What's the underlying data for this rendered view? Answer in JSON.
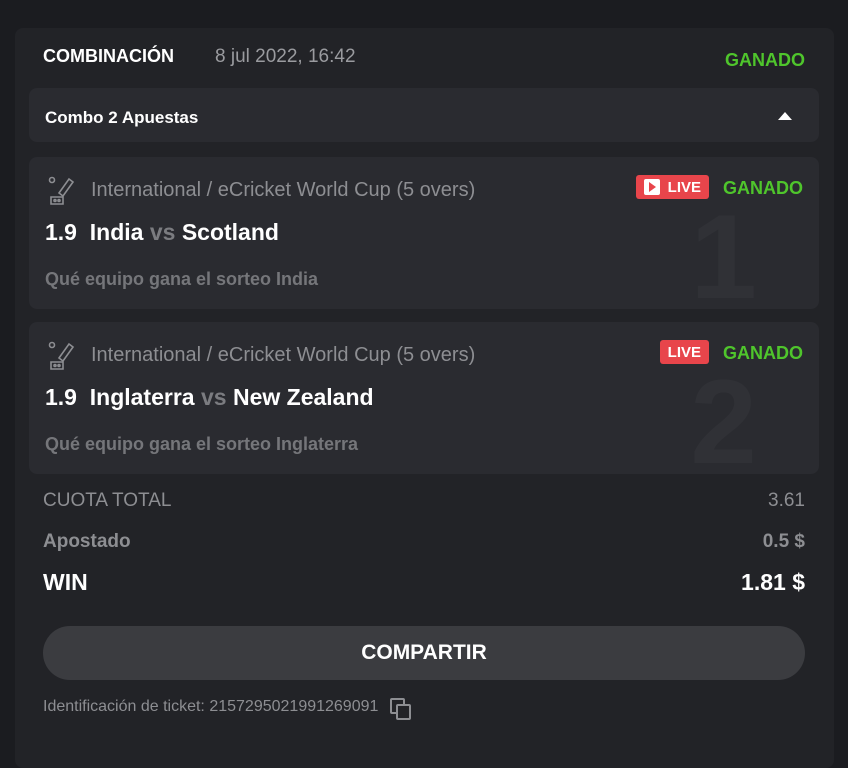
{
  "header": {
    "title": "COMBINACIÓN",
    "date": "8 jul 2022, 16:42",
    "status": "GANADO"
  },
  "combo": {
    "label": "Combo 2 Apuestas"
  },
  "bets": [
    {
      "league": "International / eCricket World Cup (5 overs)",
      "live": "LIVE",
      "status": "GANADO",
      "odds": "1.9",
      "home": "India",
      "vs": "vs",
      "away": "Scotland",
      "market": "Qué equipo gana el sorteo India",
      "index": "1"
    },
    {
      "league": "International / eCricket World Cup (5 overs)",
      "live": "LIVE",
      "status": "GANADO",
      "odds": "1.9",
      "home": "Inglaterra",
      "vs": "vs",
      "away": "New Zealand",
      "market": "Qué equipo gana el sorteo Inglaterra",
      "index": "2"
    }
  ],
  "summary": {
    "total_odds_label": "CUOTA TOTAL",
    "total_odds": "3.61",
    "stake_label": "Apostado",
    "stake": "0.5 $",
    "win_label": "WIN",
    "win": "1.81 $"
  },
  "share_label": "COMPARTIR",
  "ticket": {
    "label": "Identificación de ticket:",
    "id": "2157295021991269091"
  },
  "colors": {
    "won": "#4fc52c",
    "live": "#e8454b"
  }
}
